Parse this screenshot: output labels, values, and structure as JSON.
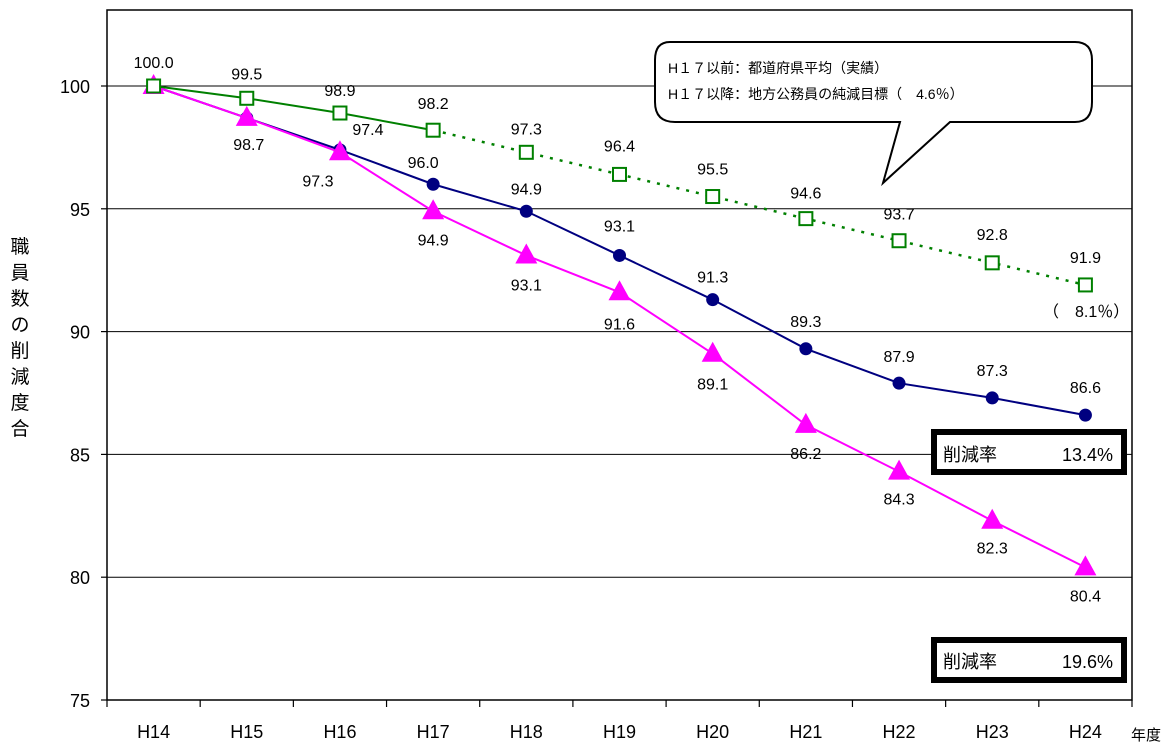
{
  "chart_data": {
    "type": "line",
    "categories": [
      "H14",
      "H15",
      "H16",
      "H17",
      "H18",
      "H19",
      "H20",
      "H21",
      "H22",
      "H23",
      "H24"
    ],
    "xlabel": "年度",
    "ylabel": "職員数の削減度合",
    "ylim": [
      75,
      100
    ],
    "yticks": [
      75,
      80,
      85,
      90,
      95,
      100
    ],
    "grid": true,
    "series": [
      {
        "values": [
          100.0,
          98.7,
          97.4,
          96.0,
          94.9,
          93.1,
          91.3,
          89.3,
          87.9,
          87.3,
          86.6
        ],
        "labels": [
          "100.0",
          "98.7",
          "97.4",
          "96.0",
          "94.9",
          "93.1",
          "91.3",
          "89.3",
          "87.9",
          "87.3",
          "86.6"
        ],
        "color": "#000080",
        "marker": "diamond",
        "line_style": "solid"
      },
      {
        "values": [
          100.0,
          98.7,
          97.3,
          94.9,
          93.1,
          91.6,
          89.1,
          86.2,
          84.3,
          82.3,
          80.4
        ],
        "labels": [
          "",
          "",
          "97.3",
          "94.9",
          "93.1",
          "91.6",
          "89.1",
          "86.2",
          "84.3",
          "82.3",
          "80.4"
        ],
        "color": "#ff00ff",
        "marker": "triangle",
        "line_style": "solid"
      },
      {
        "values": [
          100.0,
          99.5,
          98.9,
          98.2,
          97.3,
          96.4,
          95.5,
          94.6,
          93.7,
          92.8,
          91.9
        ],
        "labels": [
          "",
          "99.5",
          "98.9",
          "98.2",
          "97.3",
          "96.4",
          "95.5",
          "94.6",
          "93.7",
          "92.8",
          "91.9"
        ],
        "color": "#008000",
        "marker": "square-open",
        "line_style": "solid until H17, dotted after"
      }
    ],
    "annotations": {
      "callout_line1": "H１７以前：都道府県平均（実績）",
      "callout_line2": "H１７以降：地方公務員の純減目標（　4.6％）",
      "green_note": "（　8.1％）",
      "box1_label": "削減率",
      "box1_value": "13.4%",
      "box2_label": "削減率",
      "box2_value": "19.6%"
    }
  }
}
